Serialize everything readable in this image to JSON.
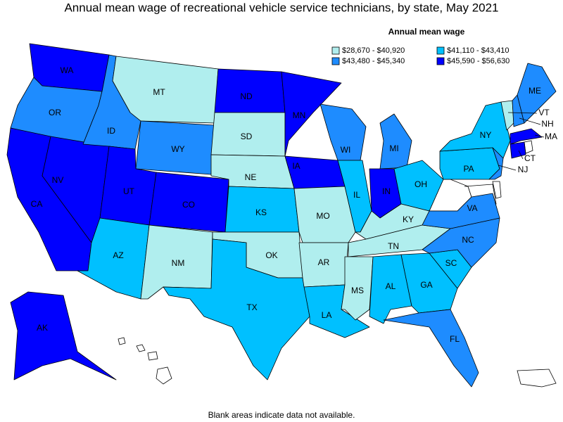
{
  "title": "Annual mean wage of recreational vehicle service technicians, by state, May 2021",
  "legend": {
    "title": "Annual mean wage",
    "entries": [
      {
        "label": "$28,670 - $40,920",
        "color": "#b0eeee"
      },
      {
        "label": "$41,110 - $43,410",
        "color": "#00c0ff"
      },
      {
        "label": "$43,480 - $45,340",
        "color": "#1e8cff"
      },
      {
        "label": "$45,590 - $56,630",
        "color": "#0000ff"
      }
    ]
  },
  "states": [
    {
      "label": "WA",
      "color": "#0000ff"
    },
    {
      "label": "OR",
      "color": "#1e8cff"
    },
    {
      "label": "CA",
      "color": "#0000ff"
    },
    {
      "label": "NV",
      "color": "#0000ff"
    },
    {
      "label": "ID",
      "color": "#1e8cff"
    },
    {
      "label": "MT",
      "color": "#b0eeee"
    },
    {
      "label": "WY",
      "color": "#1e8cff"
    },
    {
      "label": "UT",
      "color": "#0000ff"
    },
    {
      "label": "CO",
      "color": "#0000ff"
    },
    {
      "label": "AZ",
      "color": "#00c0ff"
    },
    {
      "label": "NM",
      "color": "#b0eeee"
    },
    {
      "label": "ND",
      "color": "#0000ff"
    },
    {
      "label": "SD",
      "color": "#b0eeee"
    },
    {
      "label": "NE",
      "color": "#b0eeee"
    },
    {
      "label": "KS",
      "color": "#00c0ff"
    },
    {
      "label": "OK",
      "color": "#b0eeee"
    },
    {
      "label": "TX",
      "color": "#00c0ff"
    },
    {
      "label": "MN",
      "color": "#0000ff"
    },
    {
      "label": "IA",
      "color": "#0000ff"
    },
    {
      "label": "MO",
      "color": "#b0eeee"
    },
    {
      "label": "AR",
      "color": "#b0eeee"
    },
    {
      "label": "LA",
      "color": "#00c0ff"
    },
    {
      "label": "WI",
      "color": "#1e8cff"
    },
    {
      "label": "IL",
      "color": "#00c0ff"
    },
    {
      "label": "MI",
      "color": "#1e8cff"
    },
    {
      "label": "IN",
      "color": "#0000ff"
    },
    {
      "label": "OH",
      "color": "#00c0ff"
    },
    {
      "label": "KY",
      "color": "#b0eeee"
    },
    {
      "label": "TN",
      "color": "#b0eeee"
    },
    {
      "label": "MS",
      "color": "#b0eeee"
    },
    {
      "label": "AL",
      "color": "#00c0ff"
    },
    {
      "label": "GA",
      "color": "#00c0ff"
    },
    {
      "label": "FL",
      "color": "#1e8cff"
    },
    {
      "label": "SC",
      "color": "#00c0ff"
    },
    {
      "label": "NC",
      "color": "#1e8cff"
    },
    {
      "label": "VA",
      "color": "#1e8cff"
    },
    {
      "label": "PA",
      "color": "#00c0ff"
    },
    {
      "label": "NY",
      "color": "#00c0ff"
    },
    {
      "label": "NJ",
      "color": "#1e8cff"
    },
    {
      "label": "VT",
      "color": "#b0eeee"
    },
    {
      "label": "NH",
      "color": "#1e8cff"
    },
    {
      "label": "ME",
      "color": "#1e8cff"
    },
    {
      "label": "MA",
      "color": "#0000ff"
    },
    {
      "label": "CT",
      "color": "#0000ff"
    },
    {
      "label": "AK",
      "color": "#0000ff"
    }
  ],
  "footnote": "Blank areas indicate data not available."
}
